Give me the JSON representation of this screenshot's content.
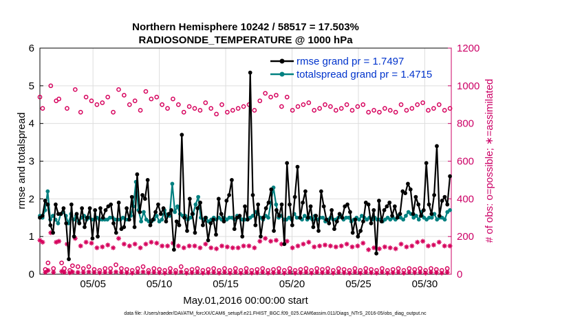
{
  "chart_data": {
    "type": "line",
    "title": "Northern Hemisphere 10242 / 58517 = 17.503%",
    "subtitle": "RADIOSONDE_TEMPERATURE @ 1000 hPa",
    "xlabel": "May.01,2016 00:00:00 start",
    "ylabel_left": "rmse and totalspread",
    "ylabel_right": "# of obs: o=possible; ∗=assimilated",
    "xlim": [
      1,
      32
    ],
    "ylim_left": [
      0,
      6
    ],
    "ylim_right": [
      0,
      1200
    ],
    "x_ticks": [
      5,
      10,
      15,
      20,
      25,
      30
    ],
    "x_tick_labels": [
      "05/05",
      "05/10",
      "05/15",
      "05/20",
      "05/25",
      "05/30"
    ],
    "y_ticks_left": [
      0,
      1,
      2,
      3,
      4,
      5,
      6
    ],
    "y_tick_labels_left": [
      "0",
      "1",
      "2",
      "3",
      "4",
      "5",
      "6"
    ],
    "y_ticks_right": [
      0,
      200,
      400,
      600,
      800,
      1000,
      1200
    ],
    "y_tick_labels_right": [
      "0",
      "200",
      "400",
      "600",
      "800",
      "1000",
      "1200"
    ],
    "grid": true,
    "legend_position": "top-right",
    "footer": "data file: /Users/raeder/DAI/ATM_forcXX/CAM6_setup/f.e21.FHIST_BGC.f09_025.CAM6assim.011/Diags_NTrS_2016-05/obs_diag_output.nc",
    "colors": {
      "rmse": "#000000",
      "spread": "#008080",
      "obs": "#d6005c",
      "axis_right": "#cc0066",
      "legend_text": "#0033cc",
      "grid": "#dddddd"
    },
    "series": [
      {
        "name": "rmse",
        "legend": "rmse grand pr = 1.7497",
        "axis": "left",
        "values": [
          1.5,
          1.55,
          1.95,
          1.85,
          1.3,
          1.1,
          1.85,
          1.6,
          1.6,
          1.75,
          1.35,
          0.4,
          1.85,
          1.0,
          1.6,
          1.35,
          1.75,
          1.25,
          1.5,
          1.75,
          0.95,
          1.7,
          1.0,
          1.75,
          1.5,
          1.7,
          1.8,
          1.85,
          1.35,
          1.1,
          1.9,
          1.2,
          1.25,
          1.75,
          1.45,
          2.05,
          1.25,
          2.65,
          1.65,
          2.1,
          2.0,
          2.5,
          1.3,
          1.45,
          1.65,
          1.85,
          1.6,
          1.75,
          1.4,
          1.6,
          1.7,
          0.65,
          1.4,
          1.3,
          3.7,
          1.5,
          1.15,
          2.0,
          1.6,
          1.1,
          1.75,
          1.9,
          1.3,
          1.5,
          0.9,
          1.35,
          1.45,
          1.05,
          2.0,
          1.6,
          1.4,
          1.95,
          2.1,
          2.5,
          1.2,
          1.5,
          1.55,
          1.0,
          1.8,
          1.45,
          5.35,
          2.1,
          1.3,
          1.85,
          1.0,
          1.5,
          1.75,
          1.9,
          2.25,
          1.15,
          1.7,
          1.55,
          1.85,
          0.8,
          2.95,
          1.85,
          1.3,
          2.05,
          2.85,
          1.5,
          1.9,
          2.2,
          1.5,
          1.8,
          1.25,
          1.55,
          1.15,
          2.2,
          1.8,
          1.45,
          1.35,
          1.7,
          1.2,
          1.4,
          1.6,
          1.5,
          1.8,
          1.85,
          1.65,
          1.1,
          1.45,
          1.0,
          1.15,
          1.4,
          1.9,
          1.85,
          1.35,
          1.7,
          0.55,
          1.95,
          1.4,
          1.7,
          1.8,
          1.9,
          1.55,
          1.8,
          1.5,
          1.6,
          2.2,
          2.15,
          2.4,
          2.25,
          1.6,
          2.05,
          1.85,
          1.55,
          1.7,
          2.95,
          1.85,
          1.6,
          2.1,
          3.4,
          1.55,
          1.95,
          2.05,
          1.85,
          2.6
        ]
      },
      {
        "name": "totalspread",
        "legend": "totalspread grand pr = 1.4715",
        "axis": "left",
        "values": [
          1.55,
          1.5,
          1.7,
          2.2,
          1.45,
          1.55,
          1.45,
          1.35,
          1.6,
          1.65,
          1.55,
          1.35,
          1.6,
          1.45,
          1.55,
          1.4,
          1.5,
          1.55,
          1.45,
          1.5,
          1.45,
          1.45,
          1.5,
          1.45,
          1.45,
          1.45,
          1.45,
          1.5,
          1.5,
          1.45,
          1.45,
          1.45,
          1.5,
          1.45,
          1.45,
          1.55,
          1.8,
          2.45,
          1.7,
          1.4,
          1.65,
          1.45,
          1.4,
          1.4,
          1.45,
          1.55,
          1.4,
          1.45,
          1.7,
          1.55,
          1.55,
          2.4,
          1.65,
          1.8,
          1.6,
          1.55,
          1.55,
          1.45,
          1.5,
          1.6,
          1.85,
          2.05,
          1.5,
          1.45,
          1.5,
          1.4,
          1.45,
          1.5,
          1.45,
          1.5,
          1.45,
          1.5,
          1.45,
          1.5,
          1.5,
          1.45,
          1.55,
          1.5,
          1.45,
          1.45,
          1.45,
          1.5,
          1.55,
          1.65,
          1.6,
          1.5,
          1.45,
          1.55,
          1.5,
          1.9,
          2.3,
          1.85,
          1.5,
          1.55,
          1.45,
          1.45,
          1.5,
          1.45,
          1.6,
          1.5,
          1.5,
          1.45,
          1.55,
          1.45,
          1.5,
          1.45,
          1.55,
          1.45,
          1.5,
          1.5,
          1.4,
          1.45,
          1.5,
          1.45,
          1.45,
          1.5,
          1.55,
          1.45,
          1.5,
          1.5,
          1.4,
          1.45,
          1.5,
          1.45,
          1.55,
          1.5,
          1.45,
          1.5,
          1.45,
          1.5,
          1.45,
          1.45,
          1.4,
          1.45,
          1.5,
          1.45,
          1.5,
          1.45,
          1.55,
          1.5,
          1.45,
          1.55,
          1.65,
          1.6,
          1.5,
          1.55,
          1.45,
          1.65,
          1.5,
          1.45,
          1.5,
          1.5,
          1.6,
          1.45,
          1.5,
          1.5,
          1.45,
          1.65,
          1.7
        ]
      },
      {
        "name": "obs_possible",
        "marker": "o",
        "axis": "right",
        "values": [
          940,
          880,
          25,
          60,
          1000,
          30,
          920,
          930,
          60,
          30,
          880,
          20,
          45,
          980,
          40,
          860,
          30,
          940,
          40,
          920,
          25,
          900,
          20,
          910,
          30,
          940,
          30,
          860,
          50,
          980,
          30,
          950,
          25,
          900,
          20,
          920,
          30,
          870,
          40,
          970,
          20,
          930,
          30,
          940,
          25,
          900,
          20,
          880,
          30,
          930,
          20,
          900,
          40,
          860,
          20,
          890,
          25,
          880,
          30,
          870,
          20,
          910,
          25,
          880,
          30,
          850,
          20,
          900,
          30,
          860,
          20,
          870,
          30,
          880,
          20,
          890,
          30,
          900,
          20,
          870,
          25,
          920,
          30,
          960,
          20,
          940,
          25,
          950,
          30,
          890,
          20,
          940,
          30,
          870,
          20,
          890,
          25,
          900,
          30,
          910,
          20,
          870,
          30,
          880,
          25,
          900,
          30,
          890,
          20,
          870,
          30,
          880,
          25,
          900,
          20,
          870,
          30,
          890,
          20,
          900,
          30,
          860,
          25,
          870,
          20,
          860,
          30,
          880,
          20,
          870,
          25,
          860,
          30,
          900,
          20,
          870,
          30,
          880,
          25,
          900,
          30,
          910,
          20,
          870,
          30,
          880,
          25,
          900,
          20,
          870,
          30,
          880
        ]
      },
      {
        "name": "obs_assimilated",
        "marker": "*",
        "axis": "right",
        "values": [
          180,
          170,
          10,
          20,
          220,
          10,
          170,
          175,
          15,
          10,
          160,
          8,
          12,
          190,
          10,
          150,
          10,
          170,
          12,
          165,
          10,
          140,
          8,
          145,
          10,
          155,
          10,
          140,
          12,
          190,
          10,
          160,
          8,
          150,
          6,
          160,
          10,
          140,
          12,
          160,
          8,
          170,
          10,
          165,
          8,
          150,
          6,
          150,
          10,
          165,
          8,
          150,
          12,
          140,
          6,
          150,
          8,
          150,
          10,
          140,
          6,
          160,
          8,
          140,
          10,
          135,
          6,
          150,
          10,
          145,
          6,
          140,
          10,
          140,
          6,
          150,
          10,
          150,
          6,
          140,
          8,
          175,
          10,
          190,
          6,
          175,
          8,
          180,
          10,
          160,
          6,
          175,
          10,
          140,
          6,
          150,
          8,
          160,
          10,
          170,
          6,
          145,
          10,
          150,
          8,
          155,
          10,
          150,
          6,
          145,
          10,
          150,
          8,
          160,
          6,
          145,
          10,
          150,
          6,
          165,
          10,
          130,
          8,
          140,
          6,
          135,
          10,
          145,
          6,
          140,
          8,
          135,
          10,
          160,
          6,
          145,
          10,
          150,
          8,
          170,
          10,
          175,
          6,
          150,
          10,
          155,
          8,
          170,
          6,
          150,
          10,
          150
        ]
      }
    ]
  }
}
